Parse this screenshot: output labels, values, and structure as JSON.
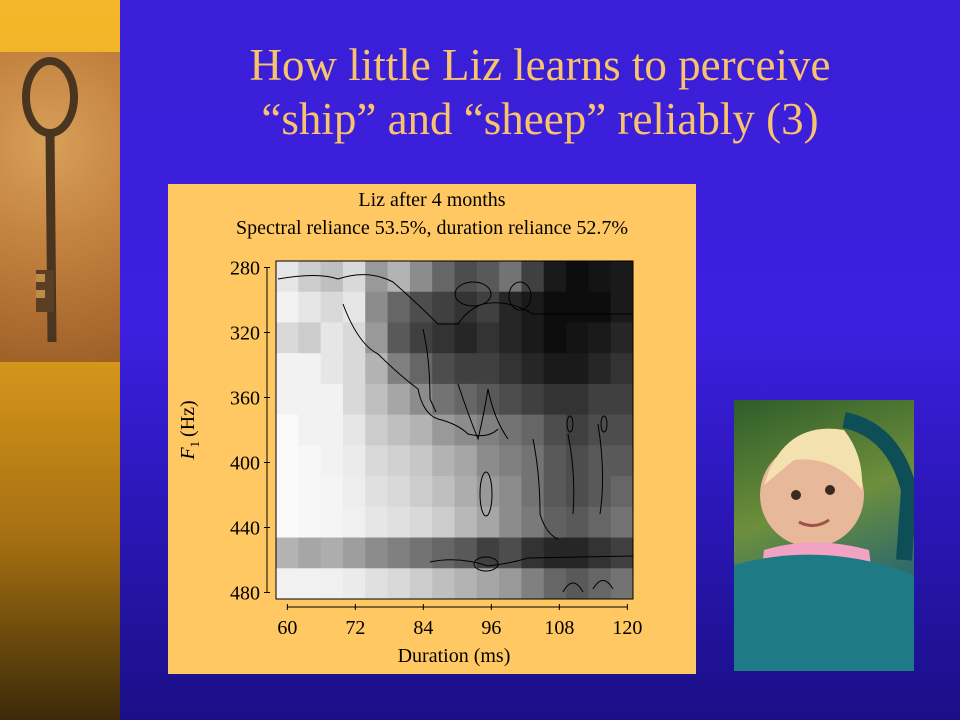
{
  "slide": {
    "title_line1": "How little Liz learns to perceive",
    "title_line2": "“ship” and “sheep” reliably (3)"
  },
  "colors": {
    "background": "#3a1fd6",
    "title": "#f8c36c",
    "left_bar": "#f4b72a",
    "figure_panel": "#ffc862"
  },
  "images": {
    "left": "rusty-key-on-sand",
    "right": "baby-in-stroller"
  },
  "chart_data": {
    "type": "heatmap",
    "title": "Liz after 4 months",
    "subtitle": "Spectral reliance 53.5%, duration reliance 52.7%",
    "xlabel": "Duration (ms)",
    "ylabel_main": "F",
    "ylabel_sub": "1",
    "ylabel_unit": "(Hz)",
    "xlim": [
      58,
      121
    ],
    "ylim": [
      276,
      484
    ],
    "xticks": [
      60,
      72,
      84,
      96,
      108,
      120
    ],
    "yticks": [
      280,
      320,
      360,
      400,
      440,
      480
    ],
    "y_inverted": true,
    "x_cells": [
      60,
      64,
      68,
      72,
      76,
      80,
      84,
      88,
      92,
      96,
      100,
      104,
      108,
      112,
      116,
      120
    ],
    "y_cells": [
      280,
      300,
      320,
      340,
      360,
      380,
      400,
      420,
      440,
      460,
      480
    ],
    "values_0_black_to_1_white": [
      [
        0.9,
        0.8,
        0.75,
        0.85,
        0.6,
        0.7,
        0.55,
        0.4,
        0.3,
        0.35,
        0.45,
        0.25,
        0.1,
        0.05,
        0.08,
        0.1
      ],
      [
        0.95,
        0.9,
        0.85,
        0.9,
        0.55,
        0.4,
        0.3,
        0.25,
        0.2,
        0.25,
        0.15,
        0.1,
        0.05,
        0.05,
        0.05,
        0.1
      ],
      [
        0.85,
        0.8,
        0.9,
        0.85,
        0.6,
        0.35,
        0.25,
        0.2,
        0.15,
        0.2,
        0.15,
        0.1,
        0.05,
        0.08,
        0.1,
        0.15
      ],
      [
        0.95,
        0.95,
        0.9,
        0.85,
        0.7,
        0.5,
        0.4,
        0.3,
        0.25,
        0.25,
        0.2,
        0.15,
        0.1,
        0.1,
        0.15,
        0.2
      ],
      [
        0.95,
        0.95,
        0.95,
        0.85,
        0.75,
        0.65,
        0.55,
        0.45,
        0.4,
        0.35,
        0.3,
        0.25,
        0.2,
        0.2,
        0.25,
        0.25
      ],
      [
        0.98,
        0.95,
        0.95,
        0.9,
        0.8,
        0.75,
        0.7,
        0.6,
        0.55,
        0.5,
        0.45,
        0.4,
        0.3,
        0.25,
        0.3,
        0.3
      ],
      [
        0.98,
        0.97,
        0.95,
        0.92,
        0.85,
        0.82,
        0.78,
        0.7,
        0.65,
        0.55,
        0.5,
        0.45,
        0.35,
        0.3,
        0.35,
        0.35
      ],
      [
        0.98,
        0.97,
        0.96,
        0.93,
        0.88,
        0.85,
        0.8,
        0.75,
        0.68,
        0.6,
        0.55,
        0.45,
        0.35,
        0.3,
        0.35,
        0.4
      ],
      [
        0.98,
        0.97,
        0.96,
        0.94,
        0.9,
        0.88,
        0.85,
        0.8,
        0.72,
        0.65,
        0.55,
        0.48,
        0.38,
        0.35,
        0.4,
        0.45
      ],
      [
        0.7,
        0.65,
        0.68,
        0.62,
        0.55,
        0.5,
        0.45,
        0.4,
        0.35,
        0.25,
        0.3,
        0.2,
        0.15,
        0.15,
        0.2,
        0.25
      ],
      [
        0.95,
        0.95,
        0.94,
        0.92,
        0.88,
        0.85,
        0.8,
        0.75,
        0.7,
        0.65,
        0.6,
        0.5,
        0.4,
        0.35,
        0.4,
        0.45
      ]
    ]
  }
}
